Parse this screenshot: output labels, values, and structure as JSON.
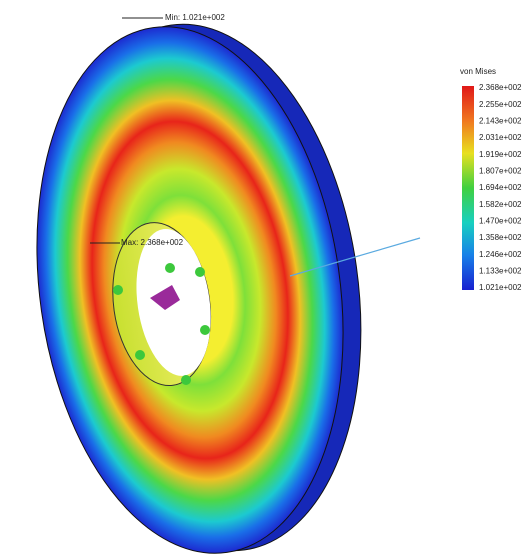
{
  "legend": {
    "title": "von Mises",
    "labels": [
      "2.368e+002",
      "2.255e+002",
      "2.143e+002",
      "2.031e+002",
      "1.919e+002",
      "1.807e+002",
      "1.694e+002",
      "1.582e+002",
      "1.470e+002",
      "1.358e+002",
      "1.246e+002",
      "1.133e+002",
      "1.021e+002"
    ]
  },
  "annotations": {
    "min": "Min: 1.021e+002",
    "max": "Max: 2.368e+002"
  }
}
